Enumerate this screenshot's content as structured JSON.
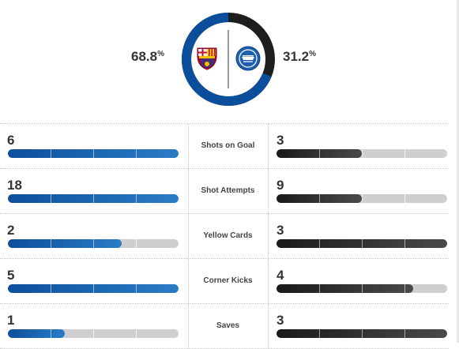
{
  "possession": {
    "home_value": "68.8",
    "away_value": "31.2",
    "percent_sign": "%",
    "home_fraction": 0.688,
    "home_color": "#0b4f9c",
    "away_color": "#1e1e1e"
  },
  "teams": {
    "home_crest_icon": "fc-barcelona-crest-icon",
    "away_crest_icon": "deportivo-alaves-crest-icon"
  },
  "stats": [
    {
      "label": "Shots on Goal",
      "home": "6",
      "away": "3",
      "home_fill": 1.0,
      "away_fill": 0.5
    },
    {
      "label": "Shot Attempts",
      "home": "18",
      "away": "9",
      "home_fill": 1.0,
      "away_fill": 0.5
    },
    {
      "label": "Yellow Cards",
      "home": "2",
      "away": "3",
      "home_fill": 0.667,
      "away_fill": 1.0
    },
    {
      "label": "Corner Kicks",
      "home": "5",
      "away": "4",
      "home_fill": 1.0,
      "away_fill": 0.8
    },
    {
      "label": "Saves",
      "home": "1",
      "away": "3",
      "home_fill": 0.333,
      "away_fill": 1.0
    }
  ]
}
